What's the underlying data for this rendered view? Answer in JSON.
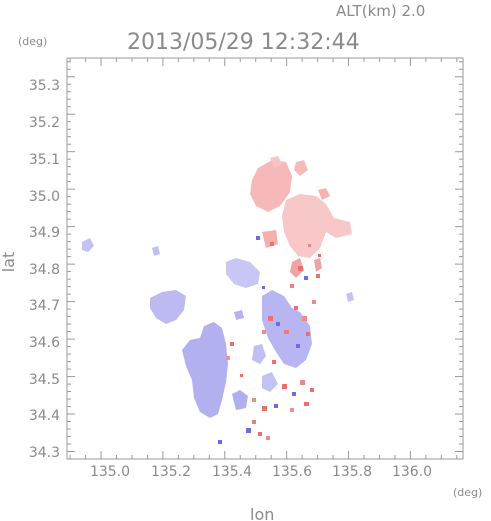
{
  "header": {
    "altitude_label": "ALT(km)  2.0",
    "timestamp": "2013/05/29 12:32:44"
  },
  "axes": {
    "x_label": "lon",
    "y_label": "lat",
    "x_unit": "(deg)",
    "y_unit": "(deg)",
    "x_ticks": [
      "135.0",
      "135.2",
      "135.4",
      "135.6",
      "135.8",
      "136.0"
    ],
    "y_ticks": [
      "35.3",
      "35.2",
      "35.1",
      "35.0",
      "34.9",
      "34.8",
      "34.7",
      "34.6",
      "34.5",
      "34.4",
      "34.3"
    ]
  },
  "chart_data": {
    "type": "heatmap",
    "x_range": [
      134.89,
      136.17
    ],
    "y_range": [
      34.28,
      35.35
    ],
    "x_ticks": [
      135.0,
      135.2,
      135.4,
      135.6,
      135.8,
      136.0
    ],
    "y_ticks": [
      34.3,
      34.4,
      34.5,
      34.6,
      34.7,
      34.8,
      34.9,
      35.0,
      35.1,
      35.2,
      35.3
    ],
    "colors": {
      "positive": "#f2a6a6",
      "positive_strong": "#ee6e6e",
      "negative": "#aaa8f0",
      "negative_strong": "#6f6ae6",
      "frame": "#9a9a9a"
    }
  }
}
